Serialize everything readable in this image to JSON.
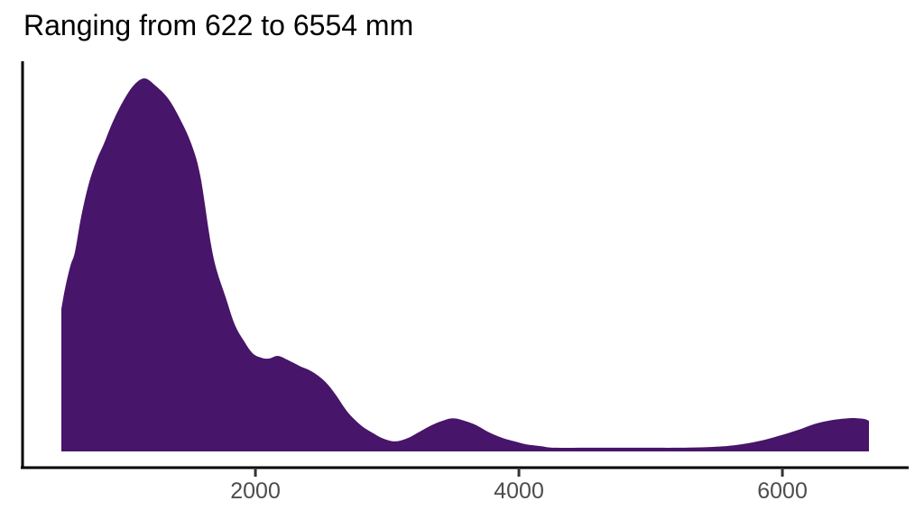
{
  "chart_data": {
    "type": "area",
    "variant": "kernel-density",
    "title": "Ranging from 622 to 6554 mm",
    "xlabel": "",
    "ylabel": "",
    "units": "mm",
    "data_min_mm": 622,
    "data_max_mm": 6554,
    "grid": false,
    "legend": false,
    "x_ticks": [
      2000,
      4000,
      6000
    ],
    "x_domain": [
      527,
      6657
    ],
    "y_domain": [
      0,
      1.0
    ],
    "curve": [
      [
        527,
        0.382
      ],
      [
        555,
        0.437
      ],
      [
        596,
        0.498
      ],
      [
        630,
        0.534
      ],
      [
        678,
        0.63
      ],
      [
        733,
        0.715
      ],
      [
        794,
        0.78
      ],
      [
        849,
        0.824
      ],
      [
        918,
        0.884
      ],
      [
        993,
        0.937
      ],
      [
        1075,
        0.981
      ],
      [
        1157,
        1.0
      ],
      [
        1240,
        0.981
      ],
      [
        1342,
        0.944
      ],
      [
        1431,
        0.889
      ],
      [
        1514,
        0.824
      ],
      [
        1582,
        0.739
      ],
      [
        1658,
        0.565
      ],
      [
        1706,
        0.486
      ],
      [
        1774,
        0.413
      ],
      [
        1842,
        0.341
      ],
      [
        1911,
        0.297
      ],
      [
        1979,
        0.263
      ],
      [
        2048,
        0.251
      ],
      [
        2103,
        0.249
      ],
      [
        2171,
        0.256
      ],
      [
        2253,
        0.244
      ],
      [
        2336,
        0.229
      ],
      [
        2425,
        0.215
      ],
      [
        2527,
        0.188
      ],
      [
        2610,
        0.152
      ],
      [
        2699,
        0.106
      ],
      [
        2801,
        0.07
      ],
      [
        2883,
        0.051
      ],
      [
        2973,
        0.034
      ],
      [
        3062,
        0.027
      ],
      [
        3158,
        0.036
      ],
      [
        3247,
        0.053
      ],
      [
        3336,
        0.07
      ],
      [
        3418,
        0.082
      ],
      [
        3500,
        0.089
      ],
      [
        3589,
        0.082
      ],
      [
        3678,
        0.07
      ],
      [
        3774,
        0.051
      ],
      [
        3877,
        0.036
      ],
      [
        3966,
        0.027
      ],
      [
        4055,
        0.019
      ],
      [
        4171,
        0.014
      ],
      [
        4274,
        0.01
      ],
      [
        4582,
        0.01
      ],
      [
        4925,
        0.01
      ],
      [
        5233,
        0.01
      ],
      [
        5473,
        0.012
      ],
      [
        5644,
        0.017
      ],
      [
        5815,
        0.027
      ],
      [
        5966,
        0.041
      ],
      [
        6123,
        0.058
      ],
      [
        6260,
        0.075
      ],
      [
        6397,
        0.085
      ],
      [
        6500,
        0.089
      ],
      [
        6568,
        0.089
      ],
      [
        6623,
        0.087
      ],
      [
        6657,
        0.082
      ]
    ]
  },
  "style": {
    "fill_color": "#471569",
    "axis_color": "#000000",
    "tick_color": "#333333",
    "tick_label_color": "#4d4d4d",
    "title_color": "#000000",
    "background": "#ffffff"
  }
}
